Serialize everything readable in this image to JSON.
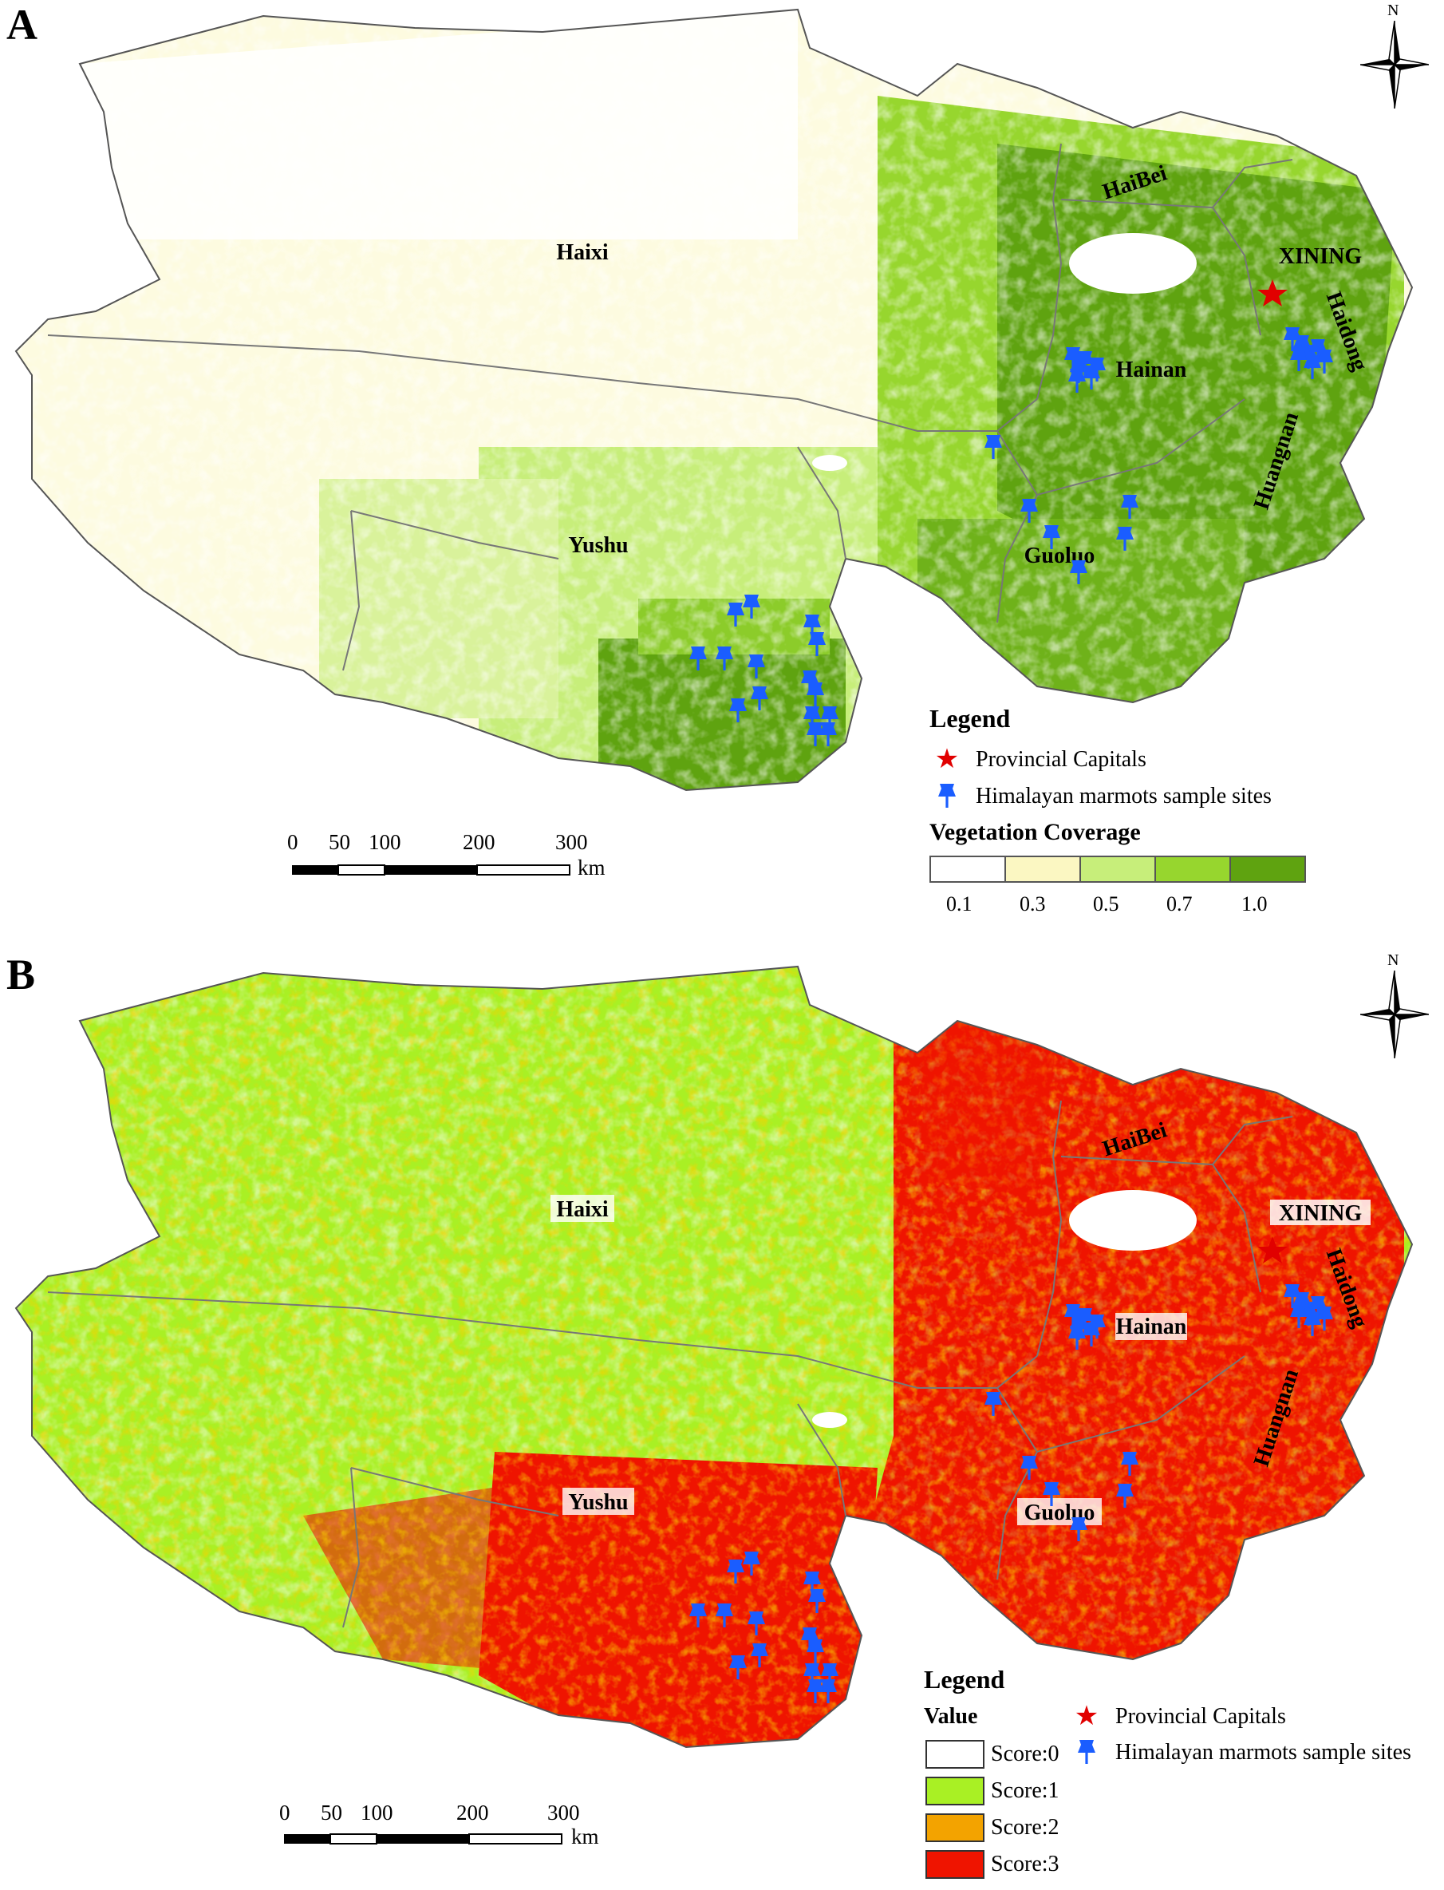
{
  "colors": {
    "veg": [
      "#ffffff",
      "#fbf7c2",
      "#c7ee7a",
      "#97d62e",
      "#5fa310"
    ],
    "score": [
      "#ffffff",
      "#a9f024",
      "#f3a300",
      "#ef1400"
    ],
    "capital": "#e10000",
    "site": "#1a5dff",
    "boundary": "#777777"
  },
  "icons": {
    "compass": "compass-rose-icon",
    "capital": "star-icon",
    "site": "pushpin-icon"
  },
  "panel_a": {
    "letter": "A",
    "north": "N",
    "regions": {
      "haixi": "Haixi",
      "haibei": "HaiBei",
      "xining": "XINING",
      "haidong": "Haidong",
      "hainan": "Hainan",
      "huangnan": "Huangnan",
      "yushu": "Yushu",
      "guoluo": "Guoluo"
    },
    "legend": {
      "title": "Legend",
      "capital": "Provincial Capitals",
      "sites": "Himalayan marmots sample sites",
      "veg_title": "Vegetation Coverage",
      "veg_ticks": [
        "0.1",
        "0.3",
        "0.5",
        "0.7",
        "1.0"
      ]
    },
    "scale": {
      "ticks": [
        "0",
        "50",
        "100",
        "200",
        "300"
      ],
      "unit": "km"
    }
  },
  "panel_b": {
    "letter": "B",
    "north": "N",
    "regions": {
      "haixi": "Haixi",
      "haibei": "HaiBei",
      "xining": "XINING",
      "haidong": "Haidong",
      "hainan": "Hainan",
      "huangnan": "Huangnan",
      "yushu": "Yushu",
      "guoluo": "Guoluo"
    },
    "legend": {
      "title": "Legend",
      "value_title": "Value",
      "capital": "Provincial Capitals",
      "sites": "Himalayan marmots sample sites",
      "scores": [
        "Score:0",
        "Score:1",
        "Score:2",
        "Score:3"
      ]
    },
    "scale": {
      "ticks": [
        "0",
        "50",
        "100",
        "200",
        "300"
      ],
      "unit": "km"
    }
  }
}
